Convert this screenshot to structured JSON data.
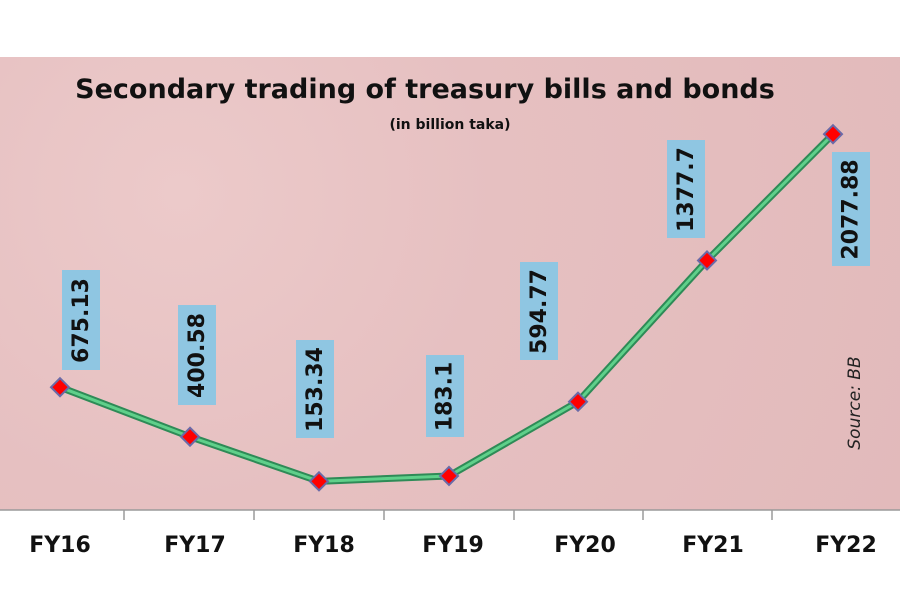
{
  "chart_data": {
    "type": "line",
    "title": "Secondary trading of treasury bills and bonds",
    "subtitle": "(in billion taka)",
    "xlabel": "",
    "ylabel": "",
    "categories": [
      "FY16",
      "FY17",
      "FY18",
      "FY19",
      "FY20",
      "FY21",
      "FY22"
    ],
    "values": [
      675.13,
      400.58,
      153.34,
      183.1,
      594.77,
      1377.7,
      2077.88
    ],
    "data_labels": [
      "675.13",
      "400.58",
      "153.34",
      "183.1",
      "594.77",
      "1377.7",
      "2077.88"
    ],
    "ylim": [
      0,
      2500
    ],
    "grid": false,
    "source": "Source: BB",
    "colors": {
      "background": "#e4bfc0",
      "line": "#3cb371",
      "marker": "#ff0000",
      "marker_edge": "#6a6aa8",
      "label_box": "#8fc6e2"
    }
  }
}
